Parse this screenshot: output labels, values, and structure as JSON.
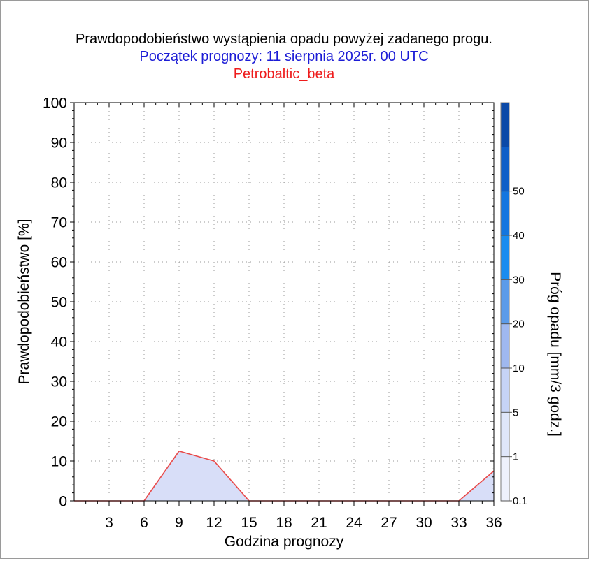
{
  "chart_data": {
    "type": "area",
    "title": "Prawdopodobieństwo wystąpienia opadu powyżej zadanego progu.",
    "subtitle": "Początek prognozy: 11 sierpnia 2025r. 00 UTC",
    "model_label": "Petrobaltic_beta",
    "xlabel": "Godzina prognozy",
    "ylabel": "Prawdopodobieństwo [%]",
    "xlim": [
      0,
      36
    ],
    "ylim": [
      0,
      100
    ],
    "x_ticks": [
      3,
      6,
      9,
      12,
      15,
      18,
      21,
      24,
      27,
      30,
      33,
      36
    ],
    "y_ticks": [
      0,
      10,
      20,
      30,
      40,
      50,
      60,
      70,
      80,
      90,
      100
    ],
    "grid": true,
    "series": [
      {
        "threshold_mm": 0.1,
        "x": [
          0,
          3,
          6,
          9,
          12,
          15,
          18,
          21,
          24,
          27,
          30,
          33,
          36
        ],
        "y": [
          0,
          0,
          0,
          12.5,
          10,
          0,
          0,
          0,
          0,
          0,
          0,
          0,
          7.5
        ],
        "line_color": "#e84a4a",
        "fill_color": "#d8def8"
      }
    ],
    "colorbar": {
      "label": "Próg opadu [mm/3 godz.]",
      "labels": [
        "0.1",
        "1",
        "5",
        "10",
        "20",
        "30",
        "40",
        "50"
      ],
      "colors": [
        "#eef1fc",
        "#dfe6fa",
        "#c6d3f6",
        "#9fb8f0",
        "#5b9be9",
        "#1a8cf0",
        "#1476e0",
        "#0f5fc8",
        "#0b4aa8"
      ]
    }
  }
}
